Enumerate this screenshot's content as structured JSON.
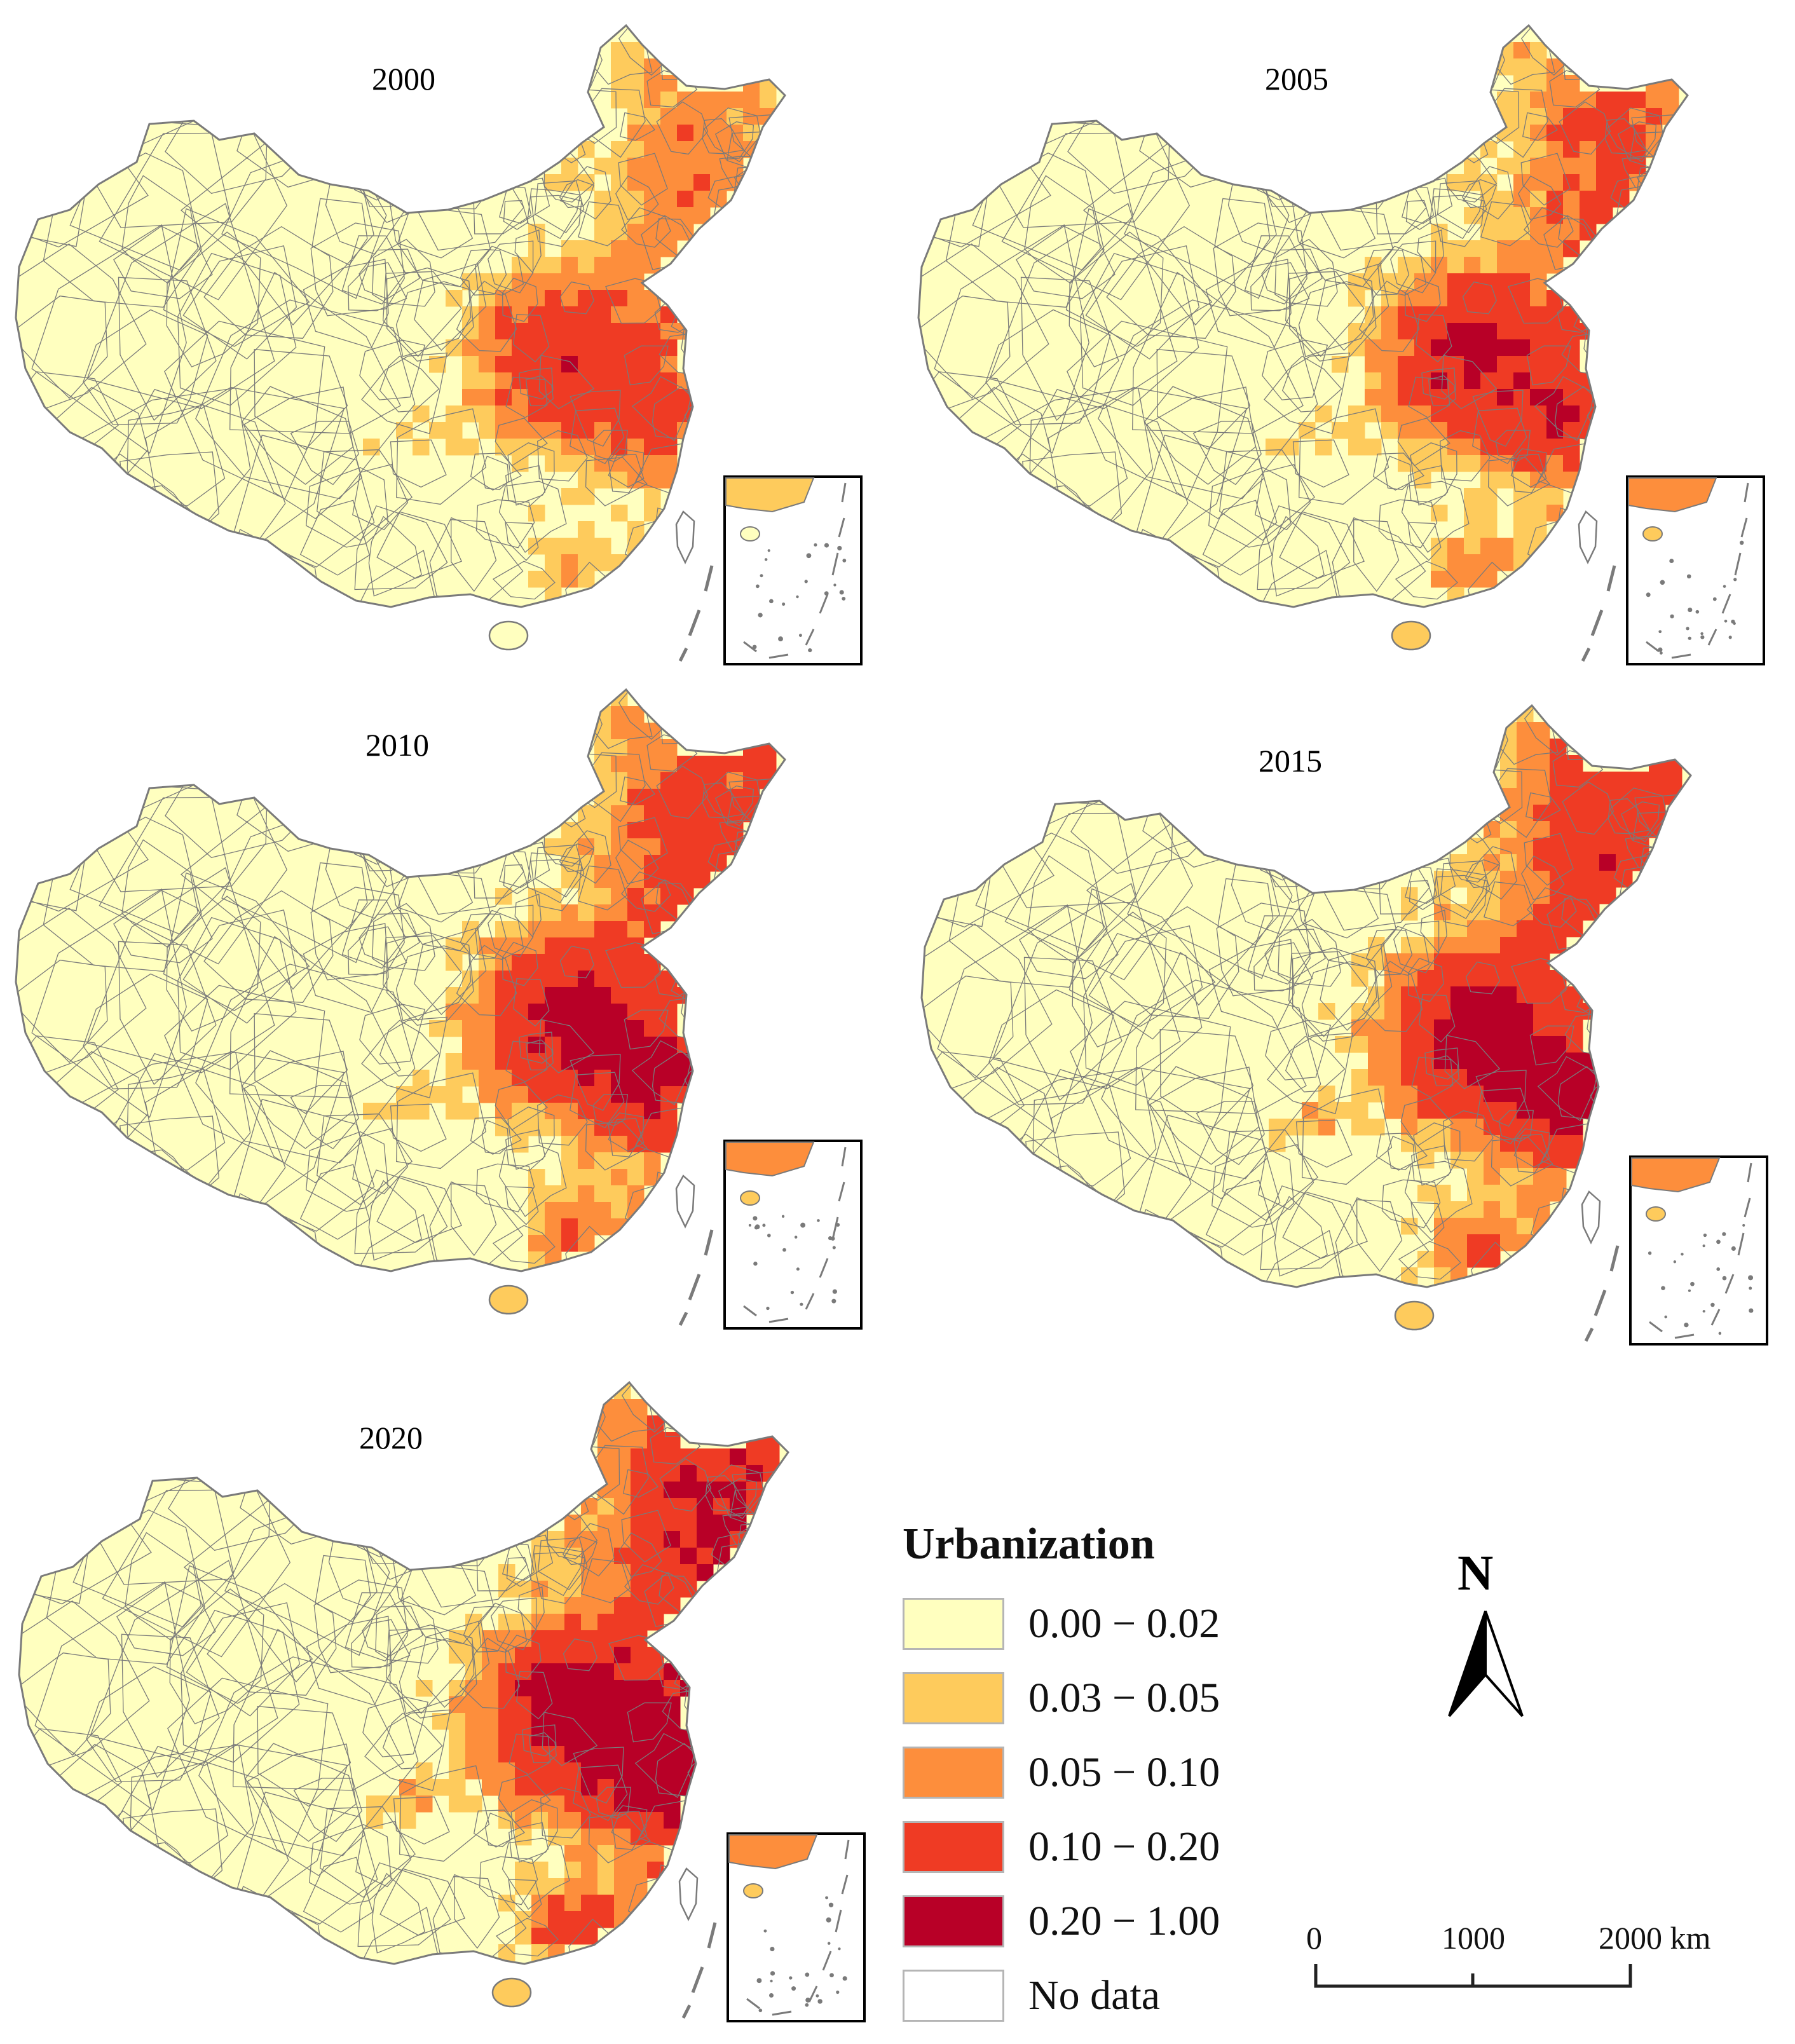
{
  "colors": {
    "class_0": "#FFFFBF",
    "class_1": "#FECB5C",
    "class_2": "#FD8E3C",
    "class_3": "#EF3B24",
    "class_4": "#B80027",
    "no_data": "#FFFFFF",
    "boundary": "#7a7a7a"
  },
  "maps": [
    {
      "year": "2000",
      "intensity": 0
    },
    {
      "year": "2005",
      "intensity": 1
    },
    {
      "year": "2010",
      "intensity": 2
    },
    {
      "year": "2015",
      "intensity": 3
    },
    {
      "year": "2020",
      "intensity": 4
    }
  ],
  "legend": {
    "title": "Urbanization",
    "items": [
      {
        "label": "0.00 − 0.02",
        "color": "#FFFFBF"
      },
      {
        "label": "0.03 − 0.05",
        "color": "#FECB5C"
      },
      {
        "label": "0.05 − 0.10",
        "color": "#FD8E3C"
      },
      {
        "label": "0.10 − 0.20",
        "color": "#EF3B24"
      },
      {
        "label": "0.20 − 1.00",
        "color": "#B80027"
      },
      {
        "label": "No data",
        "color": "#FFFFFF"
      }
    ]
  },
  "north_arrow": {
    "letter": "N",
    "icon": "north-arrow-icon"
  },
  "scale_bar": {
    "labels": [
      "0",
      "1000",
      "2000 km"
    ]
  }
}
